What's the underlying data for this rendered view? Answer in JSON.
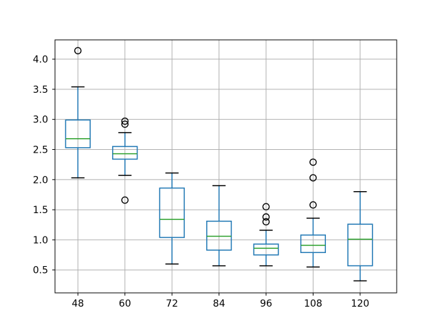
{
  "chart_data": {
    "type": "boxplot",
    "title": "",
    "xlabel": "",
    "ylabel": "",
    "categories": [
      "48",
      "60",
      "72",
      "84",
      "96",
      "108",
      "120"
    ],
    "y_ticks": [
      0.5,
      1.0,
      1.5,
      2.0,
      2.5,
      3.0,
      3.5,
      4.0
    ],
    "ylim": [
      0.12,
      4.32
    ],
    "grid": true,
    "legend": null,
    "colors": {
      "box": "#1f77b4",
      "whisker": "#1f77b4",
      "median": "#2ca02c",
      "cap": "#000000",
      "flier": "#000000",
      "grid": "#b0b0b0",
      "frame": "#000000",
      "background": "#ffffff"
    },
    "series": [
      {
        "category": "48",
        "whislo": 2.03,
        "q1": 2.53,
        "med": 2.68,
        "q3": 2.99,
        "whishi": 3.54,
        "fliers": [
          4.14
        ]
      },
      {
        "category": "60",
        "whislo": 2.07,
        "q1": 2.34,
        "med": 2.43,
        "q3": 2.55,
        "whishi": 2.78,
        "fliers": [
          2.97,
          2.92,
          1.66
        ]
      },
      {
        "category": "72",
        "whislo": 0.6,
        "q1": 1.04,
        "med": 1.34,
        "q3": 1.86,
        "whishi": 2.11,
        "fliers": []
      },
      {
        "category": "84",
        "whislo": 0.57,
        "q1": 0.83,
        "med": 1.06,
        "q3": 1.31,
        "whishi": 1.9,
        "fliers": []
      },
      {
        "category": "96",
        "whislo": 0.57,
        "q1": 0.75,
        "med": 0.86,
        "q3": 0.93,
        "whishi": 1.16,
        "fliers": [
          1.55,
          1.38,
          1.3
        ]
      },
      {
        "category": "108",
        "whislo": 0.55,
        "q1": 0.79,
        "med": 0.91,
        "q3": 1.08,
        "whishi": 1.36,
        "fliers": [
          2.29,
          2.03,
          1.58
        ]
      },
      {
        "category": "120",
        "whislo": 0.32,
        "q1": 0.57,
        "med": 1.01,
        "q3": 1.26,
        "whishi": 1.8,
        "fliers": []
      }
    ]
  }
}
